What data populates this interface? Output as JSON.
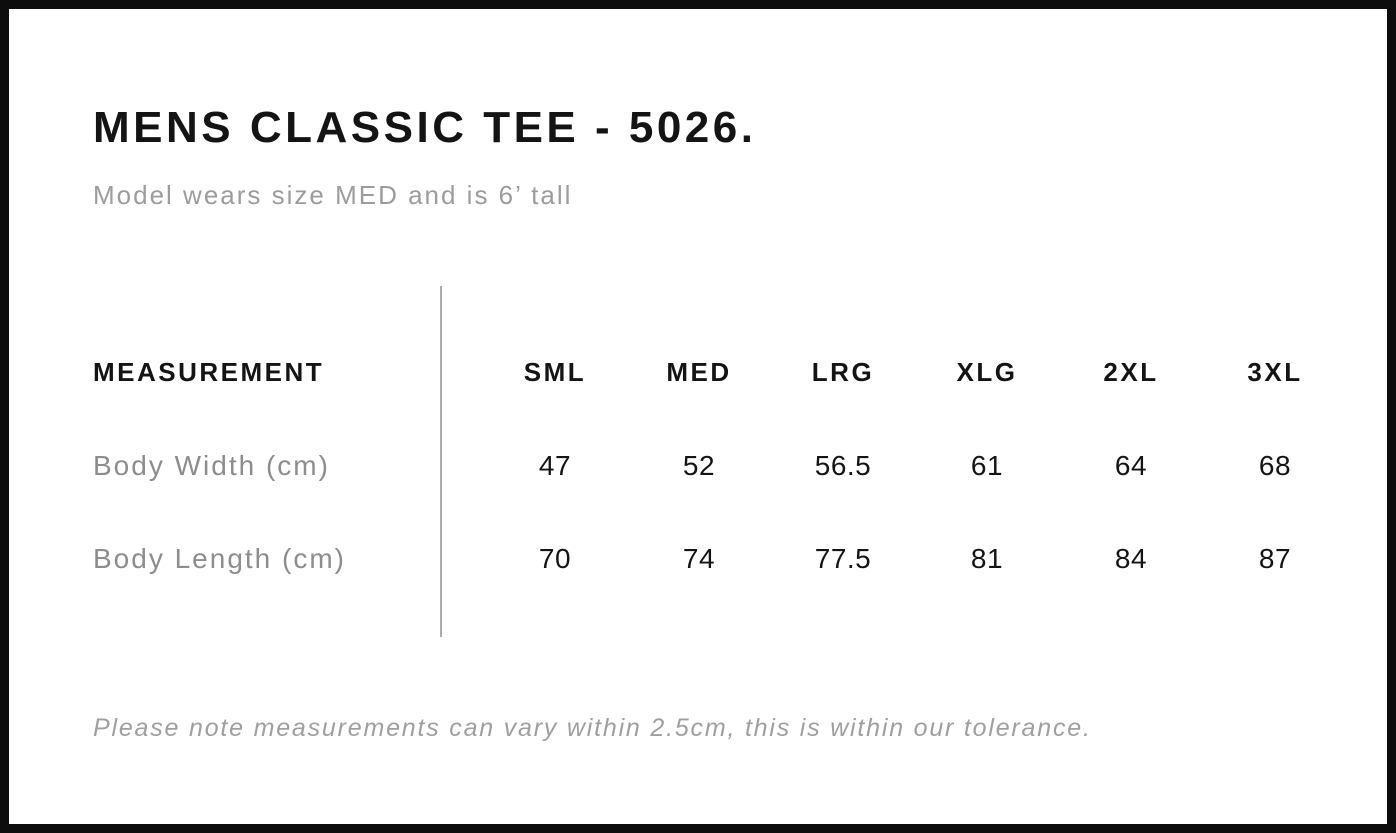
{
  "header": {
    "title": "MENS CLASSIC TEE - 5026.",
    "subtitle": "Model wears size MED and is 6’ tall"
  },
  "chart_data": {
    "type": "table",
    "title": "MENS CLASSIC TEE - 5026.",
    "columns": [
      "MEASUREMENT",
      "SML",
      "MED",
      "LRG",
      "XLG",
      "2XL",
      "3XL"
    ],
    "rows": [
      {
        "label": "Body Width (cm)",
        "values": [
          "47",
          "52",
          "56.5",
          "61",
          "64",
          "68"
        ]
      },
      {
        "label": "Body Length (cm)",
        "values": [
          "70",
          "74",
          "77.5",
          "81",
          "84",
          "87"
        ]
      }
    ],
    "layout": {
      "divider_between_label_and_sizes": true,
      "grid": "off"
    }
  },
  "footer": {
    "note": "Please note measurements can vary within 2.5cm, this is within our tolerance."
  },
  "colors": {
    "background": "#ffffff",
    "frame_border": "#0d0d0d",
    "text_primary": "#141414",
    "text_muted": "#9c9c9c",
    "row_label": "#8d8d8d",
    "divider": "#ababab"
  }
}
